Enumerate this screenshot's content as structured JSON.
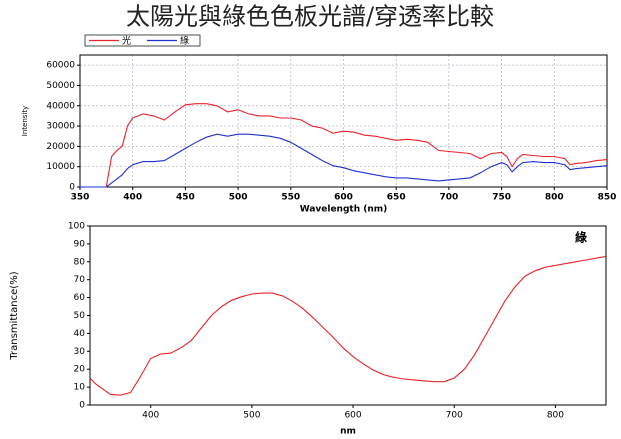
{
  "title": "太陽光與綠色色板光譜/穿透率比較",
  "chart_data": [
    {
      "type": "line",
      "xlabel": "Wavelength (nm)",
      "ylabel": "Intensity",
      "x": [
        350,
        360,
        370,
        375,
        380,
        385,
        390,
        395,
        400,
        410,
        420,
        430,
        440,
        450,
        460,
        470,
        480,
        490,
        500,
        510,
        520,
        530,
        540,
        550,
        560,
        570,
        580,
        590,
        600,
        610,
        620,
        630,
        640,
        650,
        660,
        670,
        680,
        690,
        700,
        710,
        720,
        730,
        740,
        750,
        755,
        760,
        765,
        770,
        780,
        790,
        800,
        810,
        815,
        820,
        830,
        840,
        850
      ],
      "series": [
        {
          "name": "光",
          "color": "#e8232a",
          "values": [
            0,
            0,
            0,
            0,
            15000,
            18000,
            20000,
            30000,
            34000,
            36000,
            35000,
            33000,
            37000,
            40500,
            41000,
            41000,
            40000,
            37000,
            38000,
            36000,
            35000,
            35000,
            34000,
            34000,
            33000,
            30000,
            29000,
            26500,
            27500,
            27000,
            25500,
            25000,
            24000,
            23000,
            23500,
            23000,
            22000,
            18000,
            17500,
            17000,
            16500,
            14000,
            16500,
            17000,
            15000,
            10000,
            14000,
            16000,
            15500,
            15000,
            15000,
            14000,
            11000,
            11500,
            12000,
            13000,
            13500
          ]
        },
        {
          "name": "綠",
          "color": "#1f2fd0",
          "values": [
            0,
            0,
            0,
            0,
            2000,
            4000,
            6000,
            9000,
            11000,
            12500,
            12500,
            13000,
            16000,
            19000,
            22000,
            24500,
            26000,
            25000,
            26000,
            26000,
            25500,
            25000,
            24000,
            22000,
            19000,
            16000,
            13000,
            10500,
            9500,
            8000,
            7000,
            6000,
            5000,
            4500,
            4500,
            4000,
            3500,
            3000,
            3500,
            4000,
            4500,
            7000,
            10000,
            12000,
            11000,
            7500,
            10000,
            12000,
            12500,
            12000,
            12000,
            11000,
            8500,
            9000,
            9500,
            10000,
            10500
          ]
        }
      ],
      "xlim": [
        350,
        850
      ],
      "xticks": [
        350,
        400,
        450,
        500,
        550,
        600,
        650,
        700,
        750,
        800,
        850
      ],
      "ylim": [
        0,
        65000
      ],
      "yticks": [
        0,
        10000,
        20000,
        30000,
        40000,
        50000,
        60000
      ],
      "grid": true,
      "legend": "top-left"
    },
    {
      "type": "line",
      "xlabel": "nm",
      "ylabel": "Transmittance(%)",
      "annotation": "綠",
      "annotation_color": "#1f2fd0",
      "x": [
        340,
        345,
        350,
        360,
        370,
        380,
        390,
        400,
        410,
        420,
        430,
        440,
        450,
        460,
        470,
        480,
        490,
        500,
        510,
        520,
        530,
        540,
        550,
        560,
        570,
        580,
        590,
        600,
        610,
        620,
        630,
        640,
        650,
        660,
        670,
        680,
        690,
        700,
        710,
        720,
        730,
        740,
        750,
        760,
        770,
        780,
        790,
        800,
        810,
        820,
        830,
        840,
        850
      ],
      "series": [
        {
          "color": "#e8232a",
          "values": [
            15,
            12,
            10,
            6,
            5.5,
            7,
            16,
            26,
            28.5,
            29,
            32,
            36,
            43,
            50,
            55,
            58.5,
            60.5,
            62,
            62.5,
            62.5,
            61,
            58,
            54,
            49,
            43.5,
            38,
            32,
            27,
            23,
            19.5,
            17,
            15.5,
            14.5,
            14,
            13.5,
            13,
            13,
            15,
            20,
            28,
            38,
            48,
            58,
            66,
            72,
            75,
            77,
            78,
            79,
            80,
            81,
            82,
            83
          ]
        }
      ],
      "xlim": [
        340,
        850
      ],
      "xticks": [
        400,
        500,
        600,
        700,
        800
      ],
      "ylim": [
        0,
        100
      ],
      "yticks": [
        0,
        10,
        20,
        30,
        40,
        50,
        60,
        70,
        80,
        90,
        100
      ],
      "grid": false
    }
  ]
}
